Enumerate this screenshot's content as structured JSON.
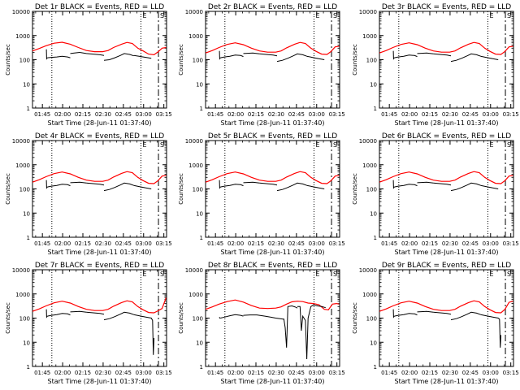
{
  "figure": {
    "ylabel": "Counts/sec",
    "xlabel": "Start Time (28-Jun-11 01:37:40)",
    "corner_labels": [
      "E",
      "S"
    ]
  },
  "chart_data": [
    {
      "type": "line",
      "title": "Det 1r BLACK = Events, RED = LLD",
      "variant": "a",
      "xlabel": "Start Time (28-Jun-11 01:37:40)",
      "ylabel": "Counts/sec",
      "xlim": [
        "01:37:40",
        "03:17:00"
      ],
      "ylim": [
        1,
        10000
      ],
      "yscale": "log",
      "x_ticks": [
        "01:45",
        "02:00",
        "02:15",
        "02:30",
        "02:45",
        "03:00",
        "03:15"
      ],
      "y_ticks": [
        "1",
        "10",
        "100",
        "1000",
        "10000"
      ],
      "vlines_dotted": [
        "01:52",
        "02:58"
      ],
      "vline_dashed": "03:11",
      "series": [
        {
          "name": "Events",
          "color": "#000000",
          "ranges": [
            [
              "01:48",
              "03:06"
            ]
          ]
        },
        {
          "name": "LLD",
          "color": "#ff0000",
          "ranges": [
            [
              "01:37:40",
              "03:17:00"
            ]
          ]
        }
      ]
    },
    {
      "type": "line",
      "title": "Det 2r BLACK = Events, RED = LLD",
      "variant": "b",
      "xlabel": "Start Time (28-Jun-11 01:37:40)",
      "ylabel": "Counts/sec",
      "xlim": [
        "01:37:40",
        "03:17:00"
      ],
      "ylim": [
        1,
        10000
      ],
      "yscale": "log",
      "x_ticks": [
        "01:45",
        "02:00",
        "02:15",
        "02:30",
        "02:45",
        "03:00",
        "03:15"
      ],
      "y_ticks": [
        "1",
        "10",
        "100",
        "1000",
        "10000"
      ],
      "vlines_dotted": [
        "01:52",
        "02:58"
      ],
      "vline_dashed": "03:11",
      "series": [
        {
          "name": "Events",
          "color": "#000000",
          "ranges": [
            [
              "01:48",
              "03:06"
            ]
          ]
        },
        {
          "name": "LLD",
          "color": "#ff0000",
          "ranges": [
            [
              "01:37:40",
              "03:17:00"
            ]
          ]
        }
      ]
    },
    {
      "type": "line",
      "title": "Det 3r BLACK = Events, RED = LLD",
      "variant": "b",
      "xlabel": "Start Time (28-Jun-11 01:37:40)",
      "ylabel": "Counts/sec",
      "xlim": [
        "01:37:40",
        "03:17:00"
      ],
      "ylim": [
        1,
        10000
      ],
      "yscale": "log",
      "x_ticks": [
        "01:45",
        "02:00",
        "02:15",
        "02:30",
        "02:45",
        "03:00",
        "03:15"
      ],
      "y_ticks": [
        "1",
        "10",
        "100",
        "1000",
        "10000"
      ],
      "vlines_dotted": [
        "01:52",
        "02:58"
      ],
      "vline_dashed": "03:11",
      "series": [
        {
          "name": "Events",
          "color": "#000000",
          "ranges": [
            [
              "01:48",
              "03:06"
            ]
          ]
        },
        {
          "name": "LLD",
          "color": "#ff0000",
          "ranges": [
            [
              "01:37:40",
              "03:17:00"
            ]
          ]
        }
      ]
    },
    {
      "type": "line",
      "title": "Det 4r BLACK = Events, RED = LLD",
      "variant": "b",
      "xlabel": "Start Time (28-Jun-11 01:37:40)",
      "ylabel": "Counts/sec",
      "xlim": [
        "01:37:40",
        "03:17:00"
      ],
      "ylim": [
        1,
        10000
      ],
      "yscale": "log",
      "x_ticks": [
        "01:45",
        "02:00",
        "02:15",
        "02:30",
        "02:45",
        "03:00",
        "03:15"
      ],
      "y_ticks": [
        "1",
        "10",
        "100",
        "1000",
        "10000"
      ],
      "vlines_dotted": [
        "01:52",
        "02:58"
      ],
      "vline_dashed": "03:11",
      "series": [
        {
          "name": "Events",
          "color": "#000000",
          "ranges": [
            [
              "01:48",
              "03:06"
            ]
          ]
        },
        {
          "name": "LLD",
          "color": "#ff0000",
          "ranges": [
            [
              "01:37:40",
              "03:17:00"
            ]
          ]
        }
      ]
    },
    {
      "type": "line",
      "title": "Det 5r BLACK = Events, RED = LLD",
      "variant": "b",
      "xlabel": "Start Time (28-Jun-11 01:37:40)",
      "ylabel": "Counts/sec",
      "xlim": [
        "01:37:40",
        "03:17:00"
      ],
      "ylim": [
        1,
        10000
      ],
      "yscale": "log",
      "x_ticks": [
        "01:45",
        "02:00",
        "02:15",
        "02:30",
        "02:45",
        "03:00",
        "03:15"
      ],
      "y_ticks": [
        "1",
        "10",
        "100",
        "1000",
        "10000"
      ],
      "vlines_dotted": [
        "01:52",
        "02:58"
      ],
      "vline_dashed": "03:11",
      "series": [
        {
          "name": "Events",
          "color": "#000000",
          "ranges": [
            [
              "01:48",
              "03:06"
            ]
          ]
        },
        {
          "name": "LLD",
          "color": "#ff0000",
          "ranges": [
            [
              "01:37:40",
              "03:17:00"
            ]
          ]
        }
      ]
    },
    {
      "type": "line",
      "title": "Det 6r BLACK = Events, RED = LLD",
      "variant": "b",
      "xlabel": "Start Time (28-Jun-11 01:37:40)",
      "ylabel": "Counts/sec",
      "xlim": [
        "01:37:40",
        "03:17:00"
      ],
      "ylim": [
        1,
        10000
      ],
      "yscale": "log",
      "x_ticks": [
        "01:45",
        "02:00",
        "02:15",
        "02:30",
        "02:45",
        "03:00",
        "03:15"
      ],
      "y_ticks": [
        "1",
        "10",
        "100",
        "1000",
        "10000"
      ],
      "vlines_dotted": [
        "01:52",
        "02:58"
      ],
      "vline_dashed": "03:11",
      "series": [
        {
          "name": "Events",
          "color": "#000000",
          "ranges": [
            [
              "01:48",
              "03:06"
            ]
          ]
        },
        {
          "name": "LLD",
          "color": "#ff0000",
          "ranges": [
            [
              "01:37:40",
              "03:17:00"
            ]
          ]
        }
      ]
    },
    {
      "type": "line",
      "title": "Det 7r BLACK = Events, RED = LLD",
      "variant": "c",
      "xlabel": "Start Time (28-Jun-11 01:37:40)",
      "ylabel": "Counts/sec",
      "xlim": [
        "01:37:40",
        "03:17:00"
      ],
      "ylim": [
        1,
        10000
      ],
      "yscale": "log",
      "x_ticks": [
        "01:45",
        "02:00",
        "02:15",
        "02:30",
        "02:45",
        "03:00",
        "03:15"
      ],
      "y_ticks": [
        "1",
        "10",
        "100",
        "1000",
        "10000"
      ],
      "vlines_dotted": [
        "01:52",
        "02:58"
      ],
      "vline_dashed": "03:11",
      "series": [
        {
          "name": "Events",
          "color": "#000000",
          "ranges": [
            [
              "01:48",
              "03:06"
            ]
          ]
        },
        {
          "name": "LLD",
          "color": "#ff0000",
          "ranges": [
            [
              "01:37:40",
              "03:17:00"
            ]
          ]
        }
      ]
    },
    {
      "type": "line",
      "title": "Det 8r BLACK = Events, RED = LLD",
      "variant": "d",
      "xlabel": "Start Time (28-Jun-11 01:37:40)",
      "ylabel": "Counts/sec",
      "xlim": [
        "01:37:40",
        "03:17:00"
      ],
      "ylim": [
        1,
        10000
      ],
      "yscale": "log",
      "x_ticks": [
        "01:45",
        "02:00",
        "02:15",
        "02:30",
        "02:45",
        "03:00",
        "03:15"
      ],
      "y_ticks": [
        "1",
        "10",
        "100",
        "1000",
        "10000"
      ],
      "vlines_dotted": [
        "01:52",
        "02:58"
      ],
      "vline_dashed": "03:11",
      "series": [
        {
          "name": "Events",
          "color": "#000000",
          "ranges": [
            [
              "01:48",
              "03:06"
            ]
          ]
        },
        {
          "name": "LLD",
          "color": "#ff0000",
          "ranges": [
            [
              "01:37:40",
              "03:17:00"
            ]
          ]
        }
      ]
    },
    {
      "type": "line",
      "title": "Det 9r BLACK = Events, RED = LLD",
      "variant": "e",
      "xlabel": "Start Time (28-Jun-11 01:37:40)",
      "ylabel": "Counts/sec",
      "xlim": [
        "01:37:40",
        "03:17:00"
      ],
      "ylim": [
        1,
        10000
      ],
      "yscale": "log",
      "x_ticks": [
        "01:45",
        "02:00",
        "02:15",
        "02:30",
        "02:45",
        "03:00",
        "03:15"
      ],
      "y_ticks": [
        "1",
        "10",
        "100",
        "1000",
        "10000"
      ],
      "vlines_dotted": [
        "01:52",
        "02:58"
      ],
      "vline_dashed": "03:11",
      "series": [
        {
          "name": "Events",
          "color": "#000000",
          "ranges": [
            [
              "01:48",
              "03:06"
            ]
          ]
        },
        {
          "name": "LLD",
          "color": "#ff0000",
          "ranges": [
            [
              "01:37:40",
              "03:17:00"
            ]
          ]
        }
      ]
    }
  ]
}
